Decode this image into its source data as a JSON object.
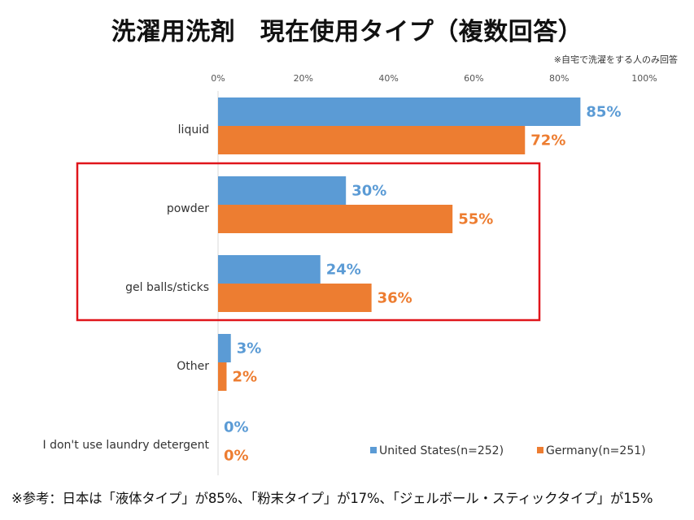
{
  "title": "洗濯用洗剤　現在使用タイプ（複数回答）",
  "note": "※自宅で洗濯をする人のみ回答",
  "footnote": "※参考：日本は「液体タイプ」が85%、「粉末タイプ」が17%、「ジェルボール・スティックタイプ」が15%",
  "colors": {
    "us": "#5b9bd5",
    "de": "#ed7d31",
    "highlight": "#e0151b",
    "axis": "#d9d9d9"
  },
  "chart_data": {
    "type": "bar",
    "orientation": "horizontal",
    "title": "洗濯用洗剤　現在使用タイプ（複数回答）",
    "xlim": [
      0,
      100
    ],
    "xticks": [
      "0%",
      "20%",
      "40%",
      "60%",
      "80%",
      "100%"
    ],
    "tick_values": [
      0,
      20,
      40,
      60,
      80,
      100
    ],
    "categories": [
      "liquid",
      "powder",
      "gel balls/sticks",
      "Other",
      "I don't use laundry detergent"
    ],
    "series": [
      {
        "name": "United States(n=252)",
        "values": [
          85,
          30,
          24,
          3,
          0
        ],
        "labels": [
          "85%",
          "30%",
          "24%",
          "3%",
          "0%"
        ]
      },
      {
        "name": "Germany(n=251)",
        "values": [
          72,
          55,
          36,
          2,
          0
        ],
        "labels": [
          "72%",
          "55%",
          "36%",
          "2%",
          "0%"
        ]
      }
    ],
    "highlighted_categories": [
      "powder",
      "gel balls/sticks"
    ],
    "legend_position": "bottom-right"
  }
}
